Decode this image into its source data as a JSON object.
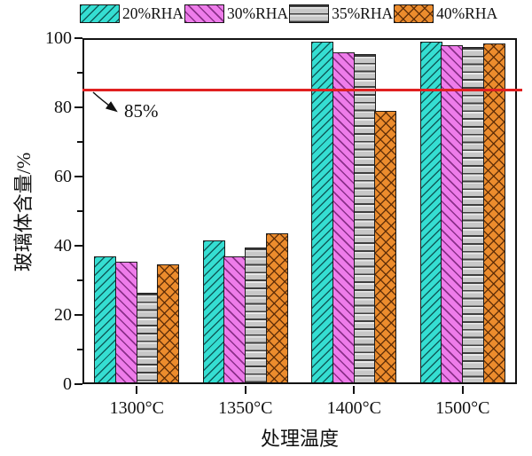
{
  "chart_data": {
    "type": "bar",
    "title": "",
    "xlabel": "处理温度",
    "ylabel": "玻璃体含量/%",
    "categories": [
      "1300°C",
      "1350°C",
      "1400°C",
      "1500°C"
    ],
    "series": [
      {
        "name": "20%RHA",
        "fill": "#35DED2",
        "hatch": "diagonal-up",
        "values": [
          37,
          41.5,
          99,
          99
        ]
      },
      {
        "name": "30%RHA",
        "fill": "#EE7CEA",
        "hatch": "diagonal-down",
        "values": [
          35.5,
          37,
          96,
          98
        ]
      },
      {
        "name": "35%RHA",
        "fill": "#C8C8C8",
        "hatch": "horizontal",
        "values": [
          26.5,
          39.5,
          95.5,
          97.5
        ]
      },
      {
        "name": "40%RHA",
        "fill": "#EC8C2D",
        "hatch": "cross",
        "values": [
          34.5,
          43.5,
          79,
          98.5
        ]
      }
    ],
    "ylim": [
      0,
      100
    ],
    "yticks": [
      0,
      20,
      40,
      60,
      80,
      100
    ],
    "yticks_minor": [
      10,
      30,
      50,
      70,
      90
    ],
    "grid": "off",
    "legend_position": "top",
    "reference_line": {
      "value": 85,
      "color": "#E02020",
      "label": "85%"
    }
  }
}
